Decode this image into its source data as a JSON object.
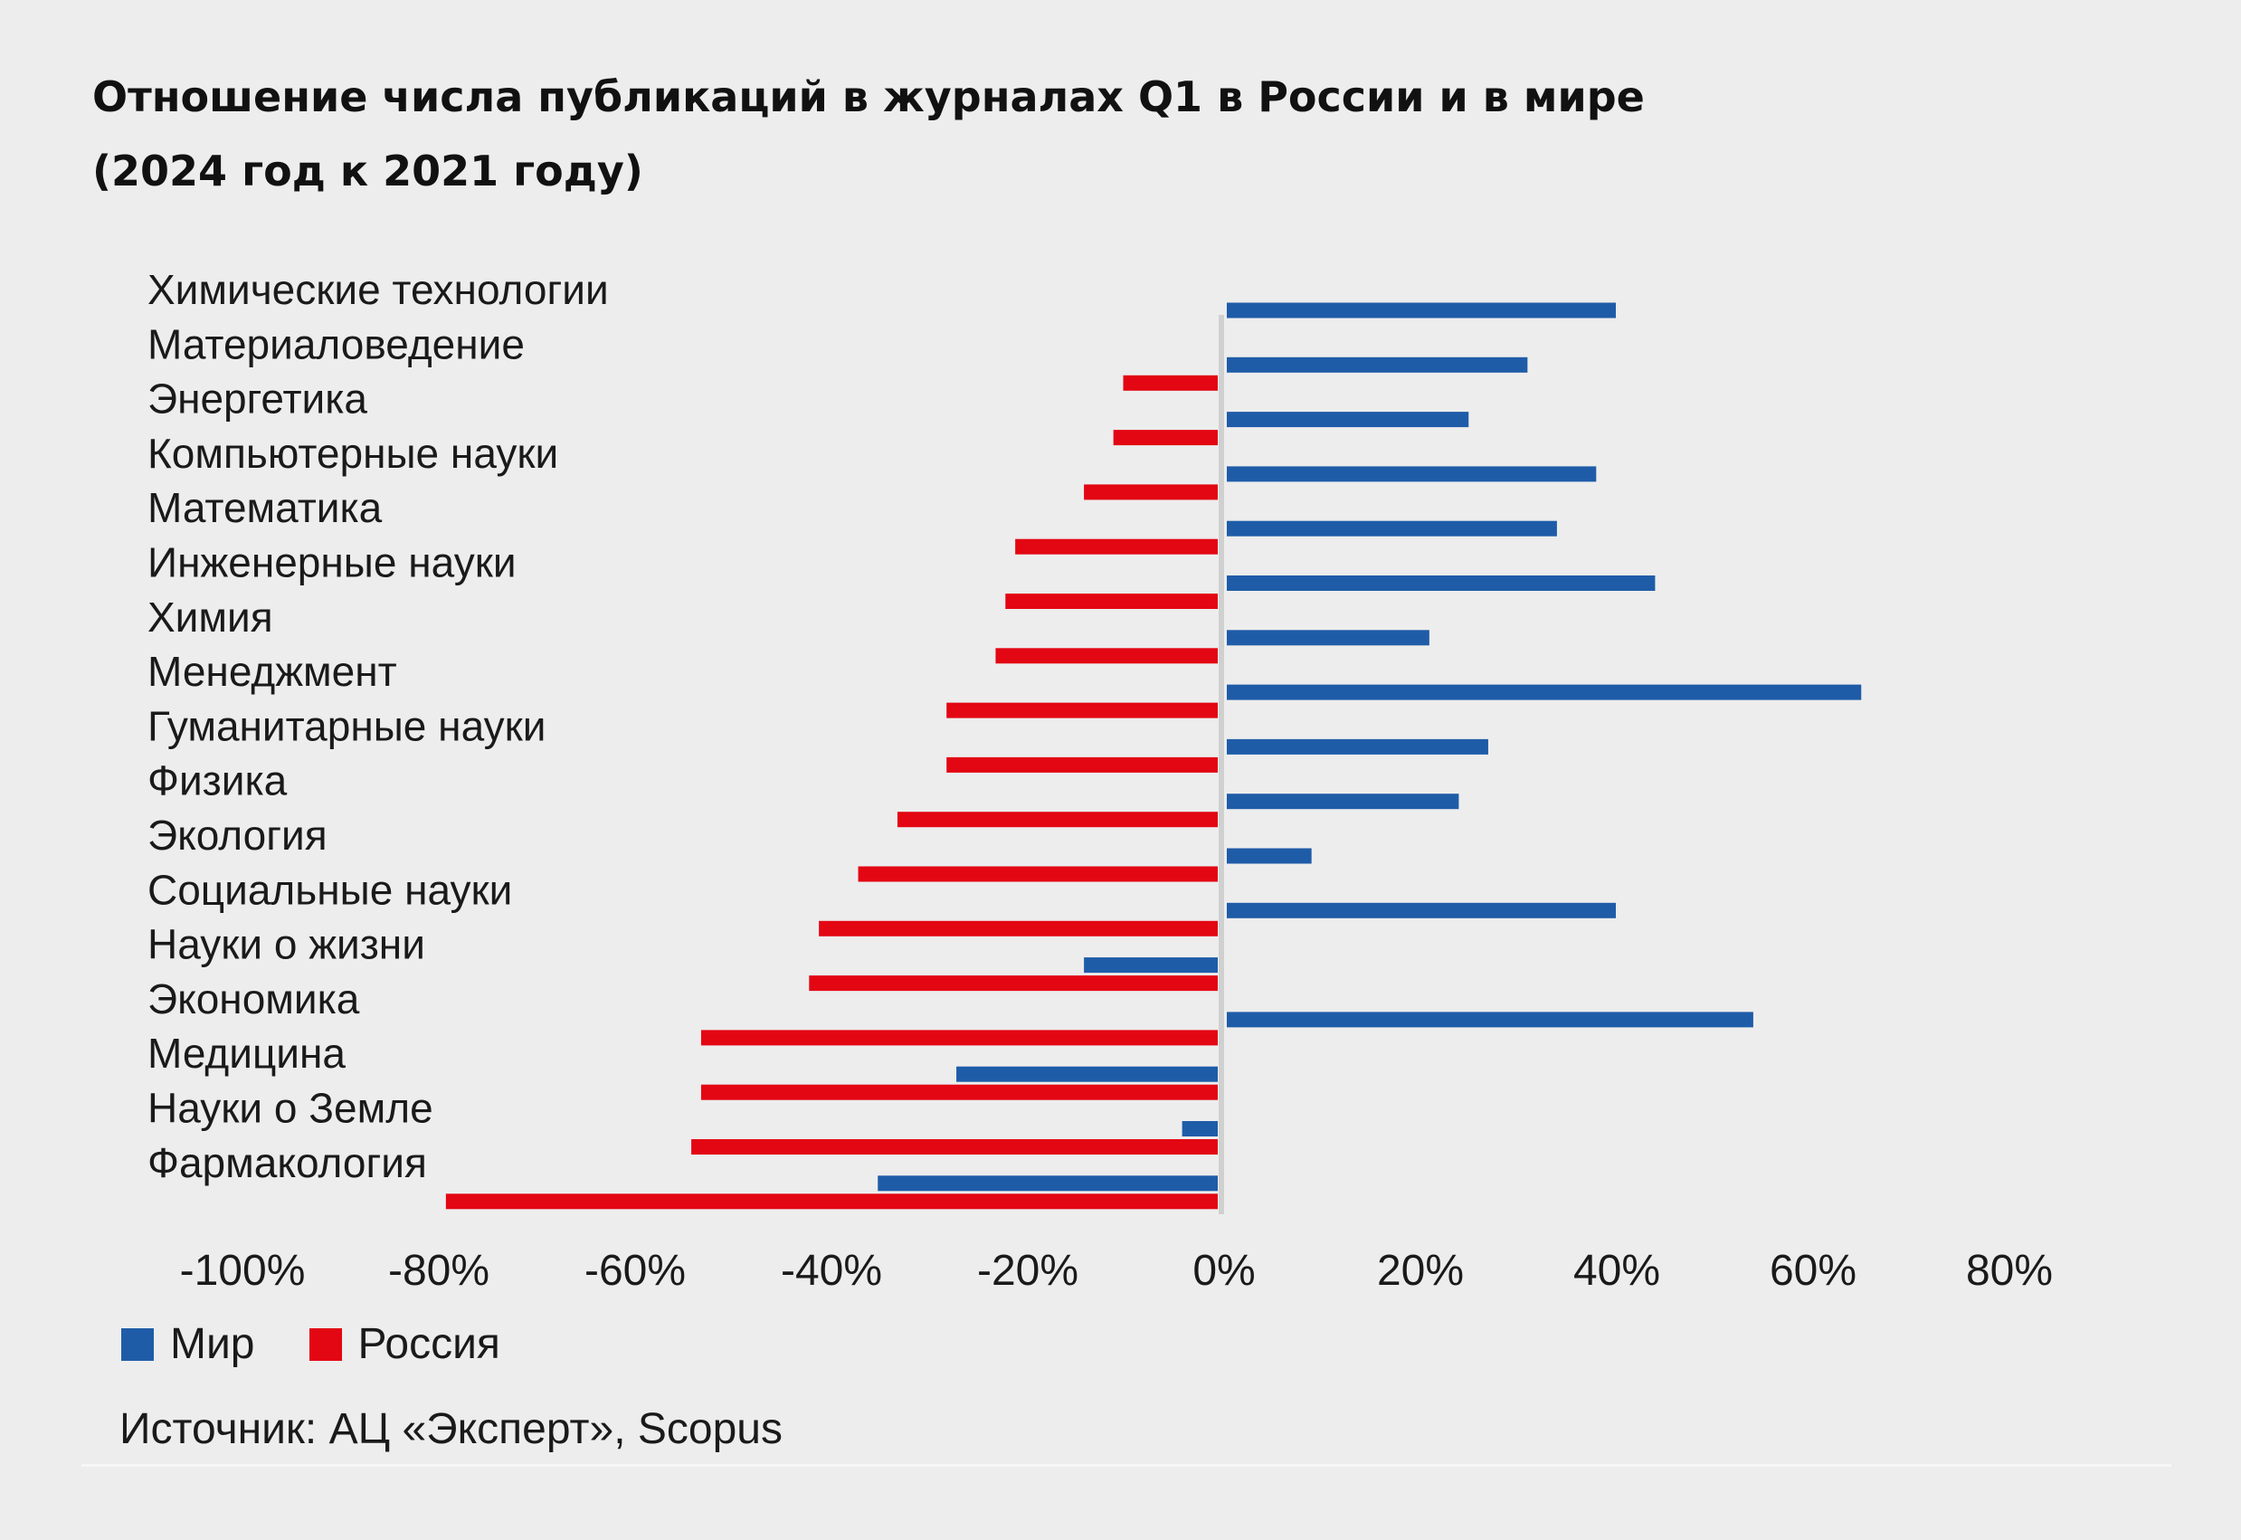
{
  "title_lines": [
    "Отношение числа публикаций в журналах Q1 в России и в мире",
    "(2024 год к 2021 году)"
  ],
  "source": "Источник: АЦ «Эксперт», Scopus",
  "colors": {
    "background": "#ededed",
    "world": "#1f5ca8",
    "russia": "#e30613",
    "zero_line": "#d0d0d0"
  },
  "chart_data": {
    "type": "bar",
    "orientation": "horizontal",
    "title": "Отношение числа публикаций в журналах Q1 в России и в мире (2024 год к 2021 году)",
    "categories": [
      "Химические технологии",
      "Материаловедение",
      "Энергетика",
      "Компьютерные науки",
      "Математика",
      "Инженерные науки",
      "Химия",
      "Менеджмент",
      "Гуманитарные науки",
      "Физика",
      "Экология",
      "Социальные науки",
      "Науки о жизни",
      "Экономика",
      "Медицина",
      "Науки о Земле",
      "Фармакология"
    ],
    "series": [
      {
        "name": "Мир",
        "color": "#1f5ca8",
        "values": [
          40,
          31,
          25,
          38,
          34,
          44,
          21,
          65,
          27,
          24,
          9,
          40,
          -14,
          54,
          -27,
          -4,
          -35
        ]
      },
      {
        "name": "Россия",
        "color": "#e30613",
        "values": [
          null,
          -10,
          -11,
          -14,
          -21,
          -22,
          -23,
          -28,
          -28,
          -33,
          -37,
          -41,
          -42,
          -53,
          -53,
          -54,
          -79
        ]
      }
    ],
    "xlim": [
      -100,
      80
    ],
    "xticks": [
      "-100%",
      "-80%",
      "-60%",
      "-40%",
      "-20%",
      "0%",
      "20%",
      "40%",
      "60%",
      "80%"
    ],
    "legend_position": "bottom-left",
    "grid": false
  },
  "legend": [
    {
      "label": "Мир",
      "color": "#1f5ca8"
    },
    {
      "label": "Россия",
      "color": "#e30613"
    }
  ]
}
